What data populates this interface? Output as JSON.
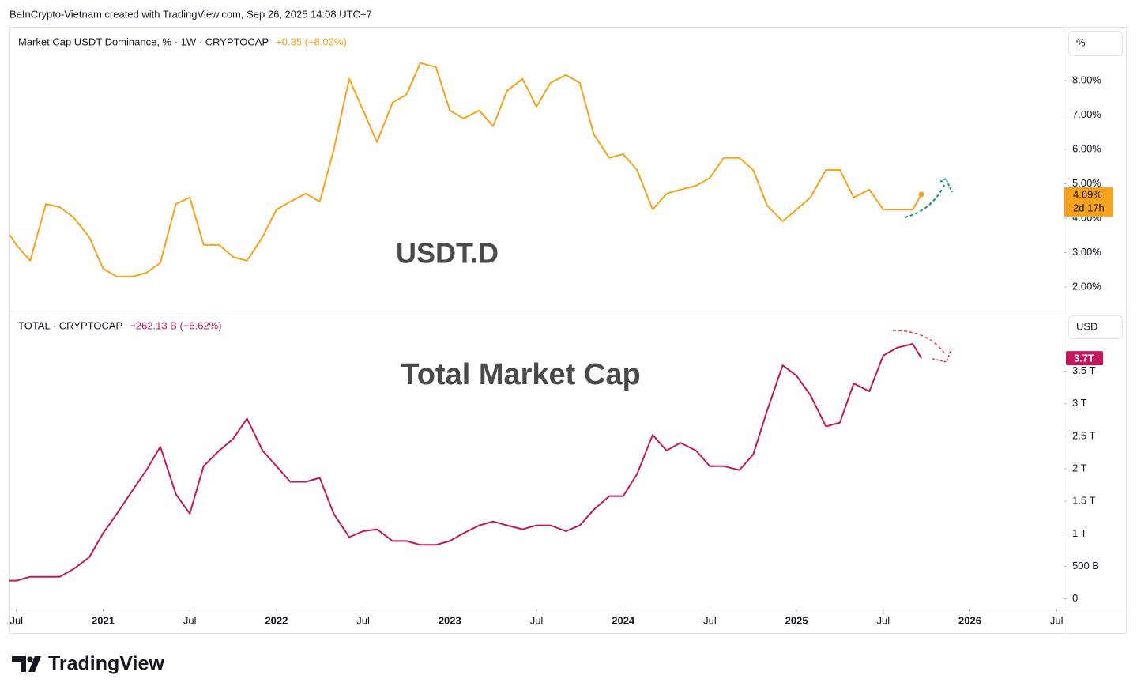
{
  "header": {
    "attribution": "BeInCrypto-Vietnam created with TradingView.com, Sep 26, 2025 14:08 UTC+7"
  },
  "chart_data": [
    {
      "type": "line",
      "title": "Market Cap USDT Dominance, % · 1W · CRYPTOCAP",
      "change": "+0.35 (+8.02%)",
      "annotation": "USDT.D",
      "unit": "%",
      "color": "#f7a21b",
      "x": [
        2020.46,
        2020.5,
        2020.58,
        2020.67,
        2020.75,
        2020.83,
        2020.92,
        2021,
        2021.08,
        2021.17,
        2021.25,
        2021.33,
        2021.42,
        2021.5,
        2021.58,
        2021.67,
        2021.75,
        2021.83,
        2021.92,
        2022,
        2022.08,
        2022.17,
        2022.25,
        2022.33,
        2022.42,
        2022.5,
        2022.58,
        2022.67,
        2022.75,
        2022.83,
        2022.92,
        2023,
        2023.08,
        2023.17,
        2023.25,
        2023.33,
        2023.42,
        2023.5,
        2023.58,
        2023.67,
        2023.75,
        2023.83,
        2023.92,
        2024,
        2024.08,
        2024.17,
        2024.25,
        2024.33,
        2024.42,
        2024.5,
        2024.58,
        2024.67,
        2024.75,
        2024.83,
        2024.92,
        2025,
        2025.08,
        2025.17,
        2025.25,
        2025.33,
        2025.42,
        2025.5,
        2025.58,
        2025.67,
        2025.72
      ],
      "values": [
        3.52,
        3.22,
        2.76,
        4.41,
        4.32,
        4.02,
        3.45,
        2.53,
        2.3,
        2.3,
        2.41,
        2.7,
        4.41,
        4.6,
        3.22,
        3.22,
        2.87,
        2.76,
        3.45,
        4.25,
        4.48,
        4.71,
        4.48,
        5.98,
        8.05,
        7.13,
        6.21,
        7.36,
        7.59,
        8.51,
        8.39,
        7.13,
        6.9,
        7.13,
        6.67,
        7.7,
        8.05,
        7.24,
        7.93,
        8.16,
        7.93,
        6.44,
        5.75,
        5.86,
        5.4,
        4.25,
        4.71,
        4.83,
        4.94,
        5.17,
        5.75,
        5.75,
        5.4,
        4.37,
        3.91,
        4.25,
        4.6,
        5.4,
        5.4,
        4.6,
        4.83,
        4.25,
        4.25,
        4.25,
        4.69
      ],
      "price_label": "4.69%",
      "countdown": "2d 17h",
      "xlim": [
        2020.46,
        2026.54
      ],
      "ylim": [
        1.31,
        9.56
      ],
      "yticks": [
        {
          "value": 2,
          "label": "2.00%"
        },
        {
          "value": 3,
          "label": "3.00%"
        },
        {
          "value": 4,
          "label": "4.00%"
        },
        {
          "value": 5,
          "label": "5.00%"
        },
        {
          "value": 6,
          "label": "6.00%"
        },
        {
          "value": 7,
          "label": "7.00%"
        },
        {
          "value": 8,
          "label": "8.00%"
        }
      ]
    },
    {
      "type": "line",
      "title": "TOTAL · CRYPTOCAP",
      "change": "−262.13 B (−6.62%)",
      "annotation": "Total Market Cap",
      "unit": "USD",
      "color": "#c2185b",
      "x": [
        2020.46,
        2020.5,
        2020.58,
        2020.67,
        2020.75,
        2020.83,
        2020.92,
        2021,
        2021.08,
        2021.17,
        2021.25,
        2021.33,
        2021.42,
        2021.5,
        2021.58,
        2021.67,
        2021.75,
        2021.83,
        2021.92,
        2022,
        2022.08,
        2022.17,
        2022.25,
        2022.33,
        2022.42,
        2022.5,
        2022.58,
        2022.67,
        2022.75,
        2022.83,
        2022.92,
        2023,
        2023.08,
        2023.17,
        2023.25,
        2023.33,
        2023.42,
        2023.5,
        2023.58,
        2023.67,
        2023.75,
        2023.83,
        2023.92,
        2024,
        2024.08,
        2024.17,
        2024.25,
        2024.33,
        2024.42,
        2024.5,
        2024.58,
        2024.67,
        2024.75,
        2024.83,
        2024.92,
        2025,
        2025.08,
        2025.17,
        2025.25,
        2025.33,
        2025.42,
        2025.5,
        2025.58,
        2025.67,
        2025.72
      ],
      "values": [
        0.28,
        0.28,
        0.34,
        0.34,
        0.34,
        0.46,
        0.64,
        1.01,
        1.31,
        1.67,
        1.98,
        2.34,
        1.61,
        1.31,
        2.04,
        2.28,
        2.46,
        2.77,
        2.28,
        2.04,
        1.8,
        1.8,
        1.86,
        1.31,
        0.95,
        1.04,
        1.07,
        0.89,
        0.89,
        0.83,
        0.83,
        0.89,
        1.01,
        1.13,
        1.19,
        1.13,
        1.07,
        1.13,
        1.13,
        1.04,
        1.13,
        1.37,
        1.58,
        1.58,
        1.92,
        2.52,
        2.28,
        2.4,
        2.28,
        2.04,
        2.04,
        1.98,
        2.22,
        2.89,
        3.59,
        3.43,
        3.13,
        2.65,
        2.71,
        3.31,
        3.19,
        3.74,
        3.86,
        3.92,
        3.7
      ],
      "price_label": "3.7T",
      "xlim": [
        2020.46,
        2026.54
      ],
      "ylim": [
        -0.15,
        4.43
      ],
      "yticks": [
        0,
        {
          "value": 0.5,
          "label": "500 B"
        },
        {
          "value": 1,
          "label": "1 T"
        },
        {
          "value": 1.5,
          "label": "1.5 T"
        },
        {
          "value": 2,
          "label": "2 T"
        },
        {
          "value": 2.5,
          "label": "2.5 T"
        },
        {
          "value": 3,
          "label": "3 T"
        },
        {
          "value": 3.5,
          "label": "3.5 T"
        }
      ],
      "xticks": [
        {
          "value": 2020.5,
          "label": "Jul"
        },
        2021,
        {
          "value": 2021.5,
          "label": "Jul"
        },
        2022,
        {
          "value": 2022.5,
          "label": "Jul"
        },
        2023,
        {
          "value": 2023.5,
          "label": "Jul"
        },
        2024,
        {
          "value": 2024.5,
          "label": "Jul"
        },
        2025,
        {
          "value": 2025.5,
          "label": "Jul"
        },
        2026,
        {
          "value": 2026.5,
          "label": "Jul"
        }
      ]
    }
  ],
  "footer": {
    "brand": "TradingView"
  }
}
